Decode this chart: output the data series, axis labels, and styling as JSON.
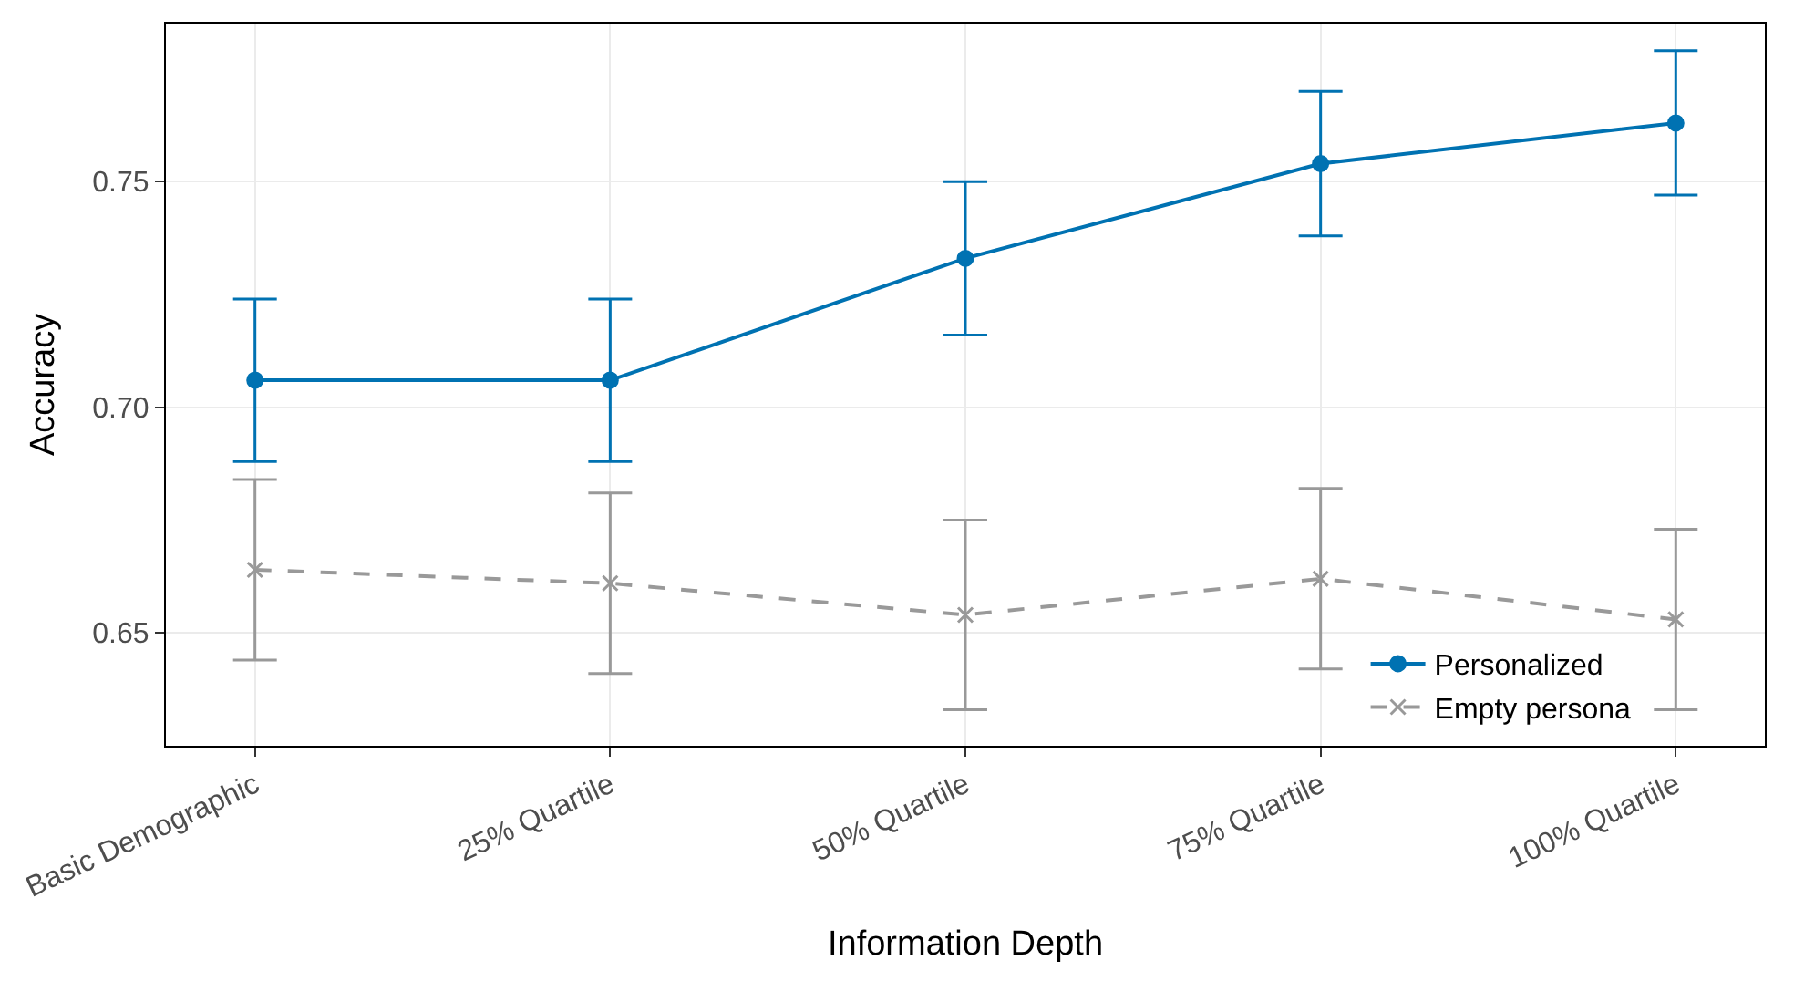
{
  "chart_data": {
    "type": "line",
    "xlabel": "Information Depth",
    "ylabel": "Accuracy",
    "categories": [
      "Basic Demographic",
      "25% Quartile",
      "50% Quartile",
      "75% Quartile",
      "100% Quartile"
    ],
    "series": [
      {
        "name": "Personalized",
        "color": "#0072b2",
        "values": [
          0.706,
          0.706,
          0.733,
          0.754,
          0.763
        ],
        "errors": [
          0.018,
          0.018,
          0.017,
          0.016,
          0.016
        ],
        "marker": "circle",
        "line_style": "solid"
      },
      {
        "name": "Empty persona",
        "color": "#999999",
        "values": [
          0.664,
          0.661,
          0.654,
          0.662,
          0.653
        ],
        "errors": [
          0.02,
          0.02,
          0.021,
          0.02,
          0.02
        ],
        "marker": "cross",
        "line_style": "dashed"
      }
    ],
    "ylim": [
      0.625,
      0.785
    ],
    "yticks": [
      {
        "value": 0.65,
        "label": "0.65"
      },
      {
        "value": 0.7,
        "label": "0.70"
      },
      {
        "value": 0.75,
        "label": "0.75"
      }
    ],
    "grid": true,
    "legend": "bottom right"
  }
}
